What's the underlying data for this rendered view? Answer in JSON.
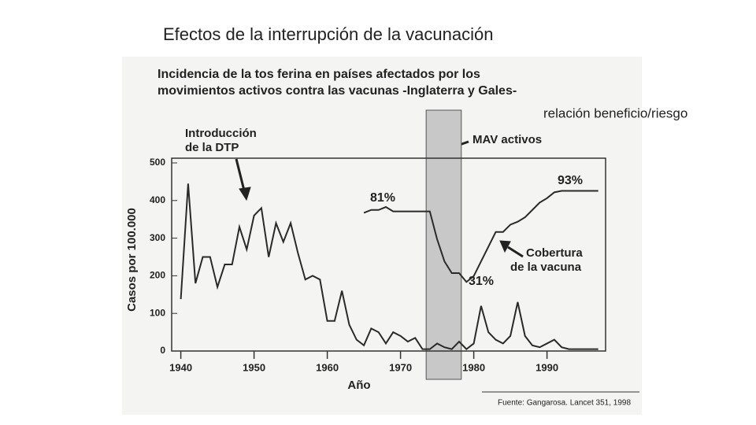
{
  "slide": {
    "title": "Efectos de la interrupción de la vacunación",
    "side_text": "relación beneficio/riesgo"
  },
  "chart_data": {
    "type": "line",
    "title": [
      "Incidencia de la tos ferina en países afectados por los",
      "movimientos activos contra las vacunas -Inglaterra y Gales-"
    ],
    "xlabel": "Año",
    "ylabel": "Casos por 100.000",
    "x": [
      1940,
      1941,
      1942,
      1943,
      1944,
      1945,
      1946,
      1947,
      1948,
      1949,
      1950,
      1951,
      1952,
      1953,
      1954,
      1955,
      1956,
      1957,
      1958,
      1959,
      1960,
      1961,
      1962,
      1963,
      1964,
      1965,
      1966,
      1967,
      1968,
      1969,
      1970,
      1971,
      1972,
      1973,
      1974,
      1975,
      1976,
      1977,
      1978,
      1979,
      1980,
      1981,
      1982,
      1983,
      1984,
      1985,
      1986,
      1987,
      1988,
      1989,
      1990,
      1991,
      1992,
      1993,
      1994,
      1995,
      1996,
      1997
    ],
    "series": [
      {
        "color": "#2a2a2a",
        "values": [
          138,
          445,
          180,
          250,
          250,
          170,
          230,
          230,
          330,
          270,
          360,
          380,
          250,
          340,
          290,
          340,
          260,
          190,
          200,
          190,
          80,
          80,
          160,
          70,
          30,
          15,
          60,
          50,
          20,
          50,
          40,
          25,
          35,
          5,
          5,
          20,
          10,
          5,
          25,
          5,
          20,
          120,
          50,
          30,
          20,
          40,
          130,
          40,
          15,
          10,
          20,
          30,
          10,
          5,
          5,
          5,
          5,
          5
        ]
      },
      {
        "color": "#2a2a2a",
        "axis": "y2",
        "values": [
          null,
          null,
          null,
          null,
          null,
          null,
          null,
          null,
          null,
          null,
          null,
          null,
          null,
          null,
          null,
          null,
          null,
          null,
          null,
          null,
          null,
          null,
          null,
          null,
          null,
          78,
          80,
          80,
          82,
          79,
          79,
          79,
          79,
          79,
          79,
          60,
          45,
          37,
          37,
          31,
          35,
          45,
          55,
          65,
          65,
          70,
          72,
          75,
          80,
          85,
          88,
          92,
          93,
          93,
          93,
          93,
          93,
          93
        ]
      }
    ],
    "xlim": [
      1938,
      1998
    ],
    "xticks": [
      1940,
      1950,
      1960,
      1970,
      1980,
      1990
    ],
    "ylim": [
      0,
      500
    ],
    "yticks": [
      0,
      100,
      200,
      300,
      400,
      500
    ],
    "y2lim": [
      -16,
      112
    ],
    "shaded_range": [
      1973.5,
      1978.3
    ],
    "shade_color": "#c8c8c8",
    "annotations": [
      [
        "Introducción",
        "de la DTP"
      ],
      [
        "MAV activos"
      ],
      [
        "Cobertura",
        "de la vacuna"
      ],
      [
        "81%"
      ],
      [
        "31%"
      ],
      [
        "93%"
      ]
    ],
    "source": "Fuente: Gangarosa. Lancet 351, 1998"
  }
}
